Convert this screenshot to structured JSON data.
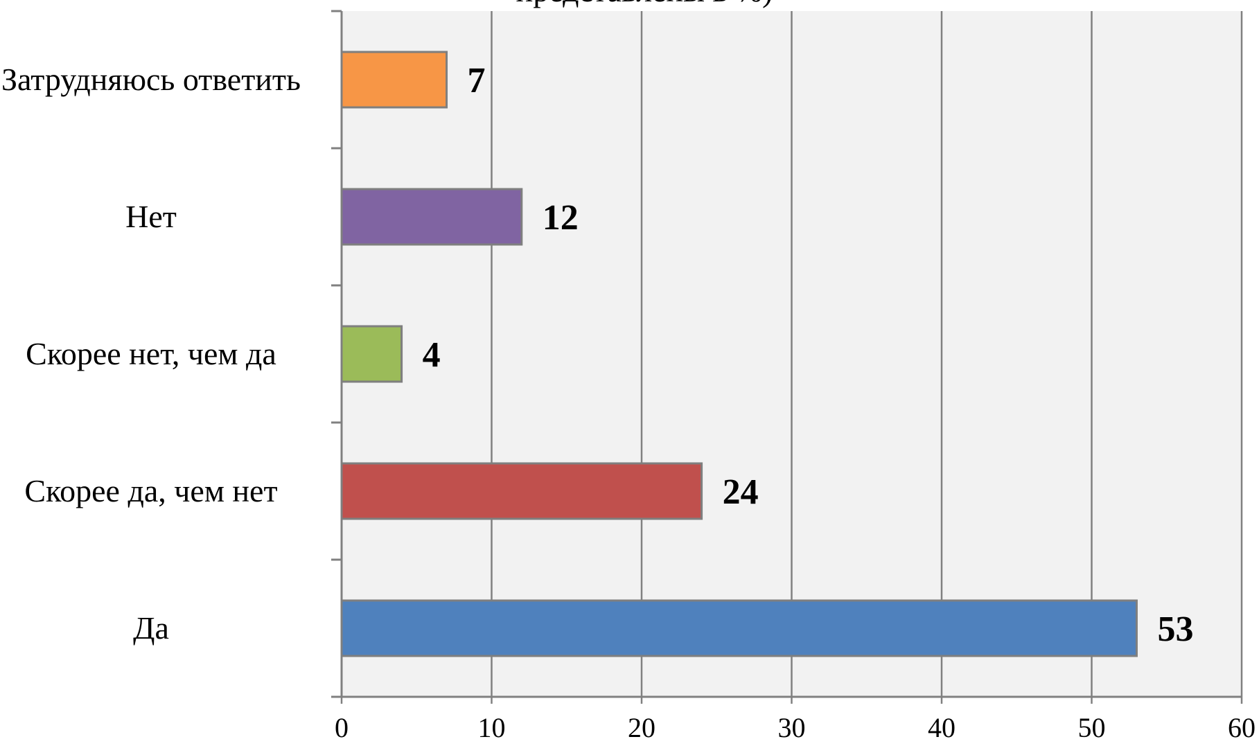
{
  "chart_data": {
    "type": "bar",
    "orientation": "horizontal",
    "title": "представлены в %)",
    "categories": [
      "Затрудняюсь ответить",
      "Нет",
      "Скорее нет, чем да",
      "Скорее да, чем нет",
      "Да"
    ],
    "values": [
      7,
      12,
      4,
      24,
      53
    ],
    "colors": [
      "#f79646",
      "#8064a2",
      "#9bbb59",
      "#c0504d",
      "#4f81bd"
    ],
    "xlim": [
      0,
      60
    ],
    "xticks": [
      0,
      10,
      20,
      30,
      40,
      50,
      60
    ],
    "grid": true
  }
}
